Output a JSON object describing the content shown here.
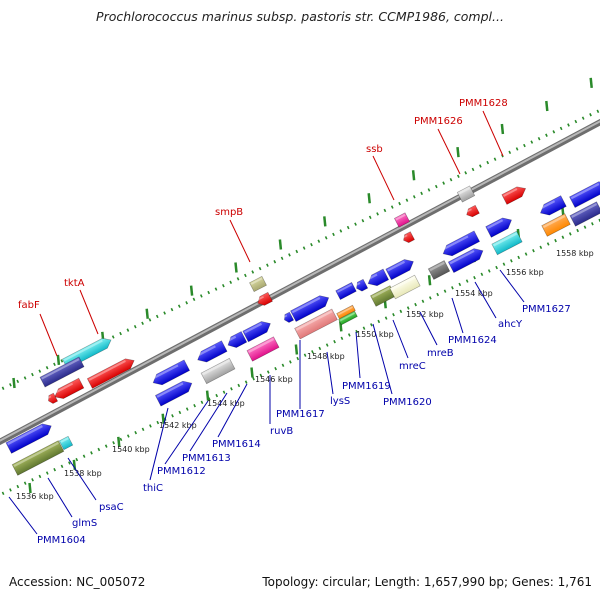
{
  "title": "Prochlorococcus marinus subsp. pastoris str. CCMP1986, compl...",
  "footer": {
    "accession": "Accession: NC_005072",
    "summary": "Topology: circular; Length: 1,657,990 bp; Genes: 1,761"
  },
  "colors": {
    "gene_blue": "#1010dd",
    "label_blue": "#0000aa",
    "label_red": "#cc0000",
    "dot_green": "#2a8a2a",
    "axis_gray": "#888888"
  },
  "scale_labels": [
    "1536 kbp",
    "1538 kbp",
    "1540 kbp",
    "1542 kbp",
    "1544 kbp",
    "1546 kbp",
    "1548 kbp",
    "1550 kbp",
    "1552 kbp",
    "1554 kbp",
    "1556 kbp",
    "1558 kbp"
  ],
  "upper_labels": [
    "fabF",
    "tktA",
    "smpB",
    "ssb",
    "PMM1626",
    "PMM1628"
  ],
  "lower_labels": [
    "PMM1604",
    "glmS",
    "psaC",
    "thiC",
    "PMM1612",
    "PMM1613",
    "PMM1614",
    "ruvB",
    "PMM1617",
    "lysS",
    "PMM1619",
    "PMM1620",
    "mreC",
    "mreB",
    "PMM1624",
    "ahcY",
    "PMM1627"
  ]
}
